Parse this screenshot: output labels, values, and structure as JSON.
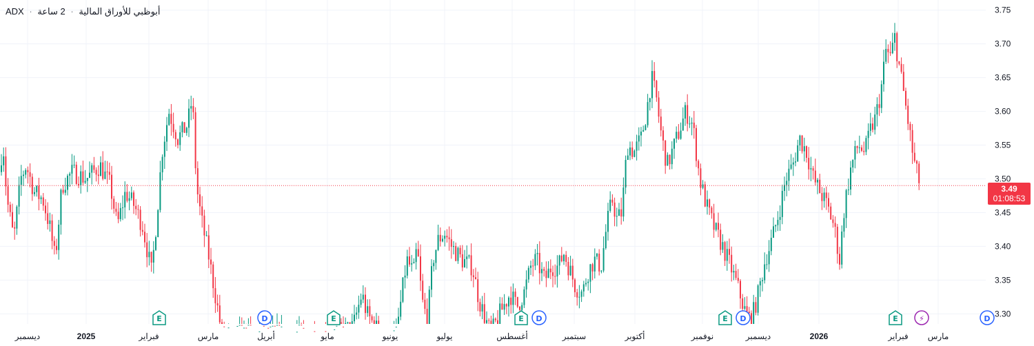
{
  "header": {
    "symbol": "ADX",
    "separator": "·",
    "exchange_title": "أبوظبي للأوراق المالية",
    "timeframe": "2 ساعة"
  },
  "current": {
    "price": "3.49",
    "countdown": "01:08:53"
  },
  "colors": {
    "up": "#089981",
    "down": "#f23645",
    "grid": "#f0f3fa",
    "axis_text": "#131722"
  },
  "events": [
    {
      "type": "E",
      "icon": "earnings-icon",
      "color": "#089981"
    },
    {
      "type": "D",
      "icon": "dividend-icon",
      "color": "#2962ff"
    },
    {
      "type": "E",
      "icon": "earnings-icon",
      "color": "#089981"
    },
    {
      "type": "E",
      "icon": "earnings-icon",
      "color": "#089981"
    },
    {
      "type": "D",
      "icon": "dividend-icon",
      "color": "#2962ff"
    },
    {
      "type": "E",
      "icon": "earnings-icon",
      "color": "#089981"
    },
    {
      "type": "D",
      "icon": "dividend-icon",
      "color": "#2962ff"
    },
    {
      "type": "E",
      "icon": "earnings-icon",
      "color": "#089981"
    },
    {
      "type": "⚡",
      "icon": "split-icon",
      "color": "#9c27b0"
    },
    {
      "type": "D",
      "icon": "dividend-icon",
      "color": "#2962ff"
    }
  ],
  "chart_data": {
    "type": "candlestick",
    "y_ticks": [
      "3.75",
      "3.70",
      "3.65",
      "3.60",
      "3.55",
      "3.50",
      "3.45",
      "3.40",
      "3.35",
      "3.30"
    ],
    "ylim": [
      3.285,
      3.765
    ],
    "x_ticks": [
      "ديسمبر",
      "2025",
      "فبراير",
      "مارس",
      "أبريل",
      "مايو",
      "يونيو",
      "يوليو",
      "أغسطس",
      "سبتمبر",
      "أكتوبر",
      "نوفمبر",
      "ديسمبر",
      "2026",
      "فبراير",
      "مارس"
    ],
    "x_bold": [
      "2025",
      "2026"
    ],
    "last_price": 3.49,
    "price_path": [
      [
        0,
        3.51
      ],
      [
        4,
        3.56
      ],
      [
        10,
        3.47
      ],
      [
        20,
        3.41
      ],
      [
        30,
        3.5
      ],
      [
        38,
        3.52
      ],
      [
        50,
        3.48
      ],
      [
        62,
        3.47
      ],
      [
        72,
        3.43
      ],
      [
        80,
        3.38
      ],
      [
        90,
        3.49
      ],
      [
        105,
        3.51
      ],
      [
        125,
        3.5
      ],
      [
        145,
        3.52
      ],
      [
        160,
        3.49
      ],
      [
        170,
        3.43
      ],
      [
        182,
        3.48
      ],
      [
        195,
        3.46
      ],
      [
        207,
        3.43
      ],
      [
        220,
        3.36
      ],
      [
        228,
        3.45
      ],
      [
        235,
        3.54
      ],
      [
        245,
        3.6
      ],
      [
        258,
        3.56
      ],
      [
        272,
        3.58
      ],
      [
        279,
        3.62
      ],
      [
        285,
        3.49
      ],
      [
        292,
        3.44
      ],
      [
        302,
        3.39
      ],
      [
        312,
        3.33
      ],
      [
        322,
        3.27
      ],
      [
        336,
        3.27
      ],
      [
        380,
        3.27
      ],
      [
        480,
        3.27
      ],
      [
        512,
        3.28
      ],
      [
        525,
        3.33
      ],
      [
        532,
        3.3
      ],
      [
        545,
        3.28
      ],
      [
        560,
        3.26
      ],
      [
        575,
        3.27
      ],
      [
        590,
        3.38
      ],
      [
        600,
        3.36
      ],
      [
        605,
        3.4
      ],
      [
        612,
        3.32
      ],
      [
        620,
        3.29
      ],
      [
        628,
        3.38
      ],
      [
        636,
        3.41
      ],
      [
        645,
        3.42
      ],
      [
        655,
        3.4
      ],
      [
        670,
        3.38
      ],
      [
        685,
        3.37
      ],
      [
        695,
        3.32
      ],
      [
        705,
        3.29
      ],
      [
        712,
        3.27
      ],
      [
        725,
        3.3
      ],
      [
        740,
        3.33
      ],
      [
        750,
        3.31
      ],
      [
        760,
        3.33
      ],
      [
        770,
        3.37
      ],
      [
        778,
        3.38
      ],
      [
        790,
        3.35
      ],
      [
        800,
        3.37
      ],
      [
        810,
        3.37
      ],
      [
        818,
        3.39
      ],
      [
        825,
        3.37
      ],
      [
        835,
        3.34
      ],
      [
        845,
        3.33
      ],
      [
        852,
        3.36
      ],
      [
        862,
        3.38
      ],
      [
        872,
        3.37
      ],
      [
        880,
        3.43
      ],
      [
        888,
        3.47
      ],
      [
        895,
        3.44
      ],
      [
        902,
        3.45
      ],
      [
        910,
        3.55
      ],
      [
        920,
        3.54
      ],
      [
        930,
        3.56
      ],
      [
        938,
        3.6
      ],
      [
        945,
        3.65
      ],
      [
        952,
        3.62
      ],
      [
        960,
        3.56
      ],
      [
        968,
        3.52
      ],
      [
        975,
        3.54
      ],
      [
        985,
        3.57
      ],
      [
        995,
        3.6
      ],
      [
        1005,
        3.58
      ],
      [
        1015,
        3.5
      ],
      [
        1025,
        3.46
      ],
      [
        1035,
        3.43
      ],
      [
        1048,
        3.4
      ],
      [
        1060,
        3.37
      ],
      [
        1070,
        3.34
      ],
      [
        1082,
        3.3
      ],
      [
        1090,
        3.29
      ],
      [
        1100,
        3.33
      ],
      [
        1110,
        3.38
      ],
      [
        1120,
        3.41
      ],
      [
        1130,
        3.45
      ],
      [
        1140,
        3.5
      ],
      [
        1150,
        3.52
      ],
      [
        1160,
        3.56
      ],
      [
        1170,
        3.54
      ],
      [
        1180,
        3.5
      ],
      [
        1190,
        3.48
      ],
      [
        1200,
        3.46
      ],
      [
        1210,
        3.43
      ],
      [
        1218,
        3.38
      ],
      [
        1225,
        3.46
      ],
      [
        1235,
        3.52
      ],
      [
        1245,
        3.55
      ],
      [
        1255,
        3.54
      ],
      [
        1262,
        3.57
      ],
      [
        1270,
        3.59
      ],
      [
        1278,
        3.63
      ],
      [
        1285,
        3.69
      ],
      [
        1292,
        3.68
      ],
      [
        1298,
        3.71
      ],
      [
        1304,
        3.67
      ],
      [
        1312,
        3.62
      ],
      [
        1318,
        3.58
      ],
      [
        1325,
        3.53
      ],
      [
        1332,
        3.5
      ],
      [
        1336,
        3.49
      ]
    ]
  }
}
